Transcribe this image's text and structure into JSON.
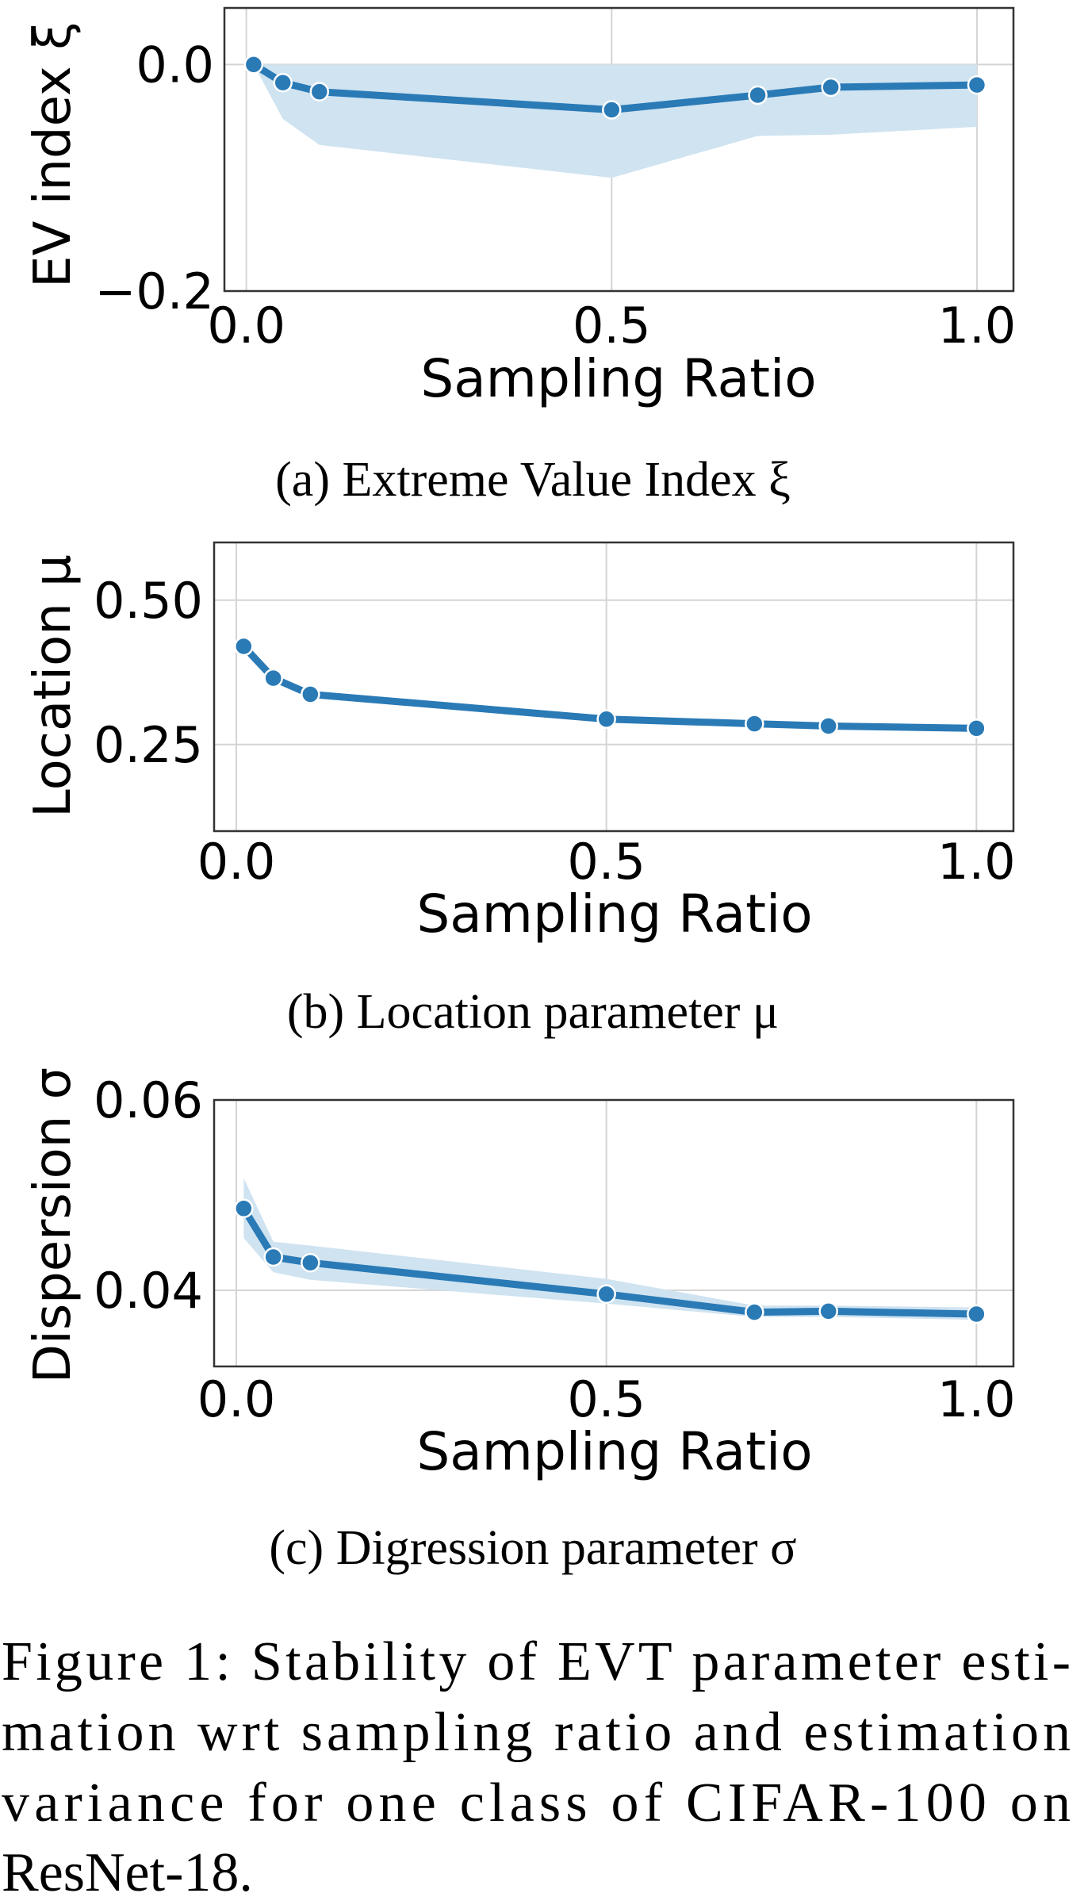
{
  "colors": {
    "line": "#2a7ab6",
    "band": "#cfe3f1",
    "grid": "#d4d4d4"
  },
  "chart_data": [
    {
      "type": "line",
      "x": [
        0.01,
        0.05,
        0.1,
        0.5,
        0.7,
        0.8,
        1.0
      ],
      "values": [
        0.0,
        -0.016,
        -0.024,
        -0.04,
        -0.027,
        -0.02,
        -0.018
      ],
      "band_lower": [
        0.0,
        -0.048,
        -0.071,
        -0.1,
        -0.063,
        -0.062,
        -0.055
      ],
      "band_upper": [
        0.0,
        0.0,
        0.0,
        0.0,
        0.0,
        0.0,
        0.0
      ],
      "xlabel": "Sampling Ratio",
      "ylabel": "EV index ξ",
      "xlim": [
        -0.03,
        1.05
      ],
      "ylim": [
        -0.2,
        0.05
      ],
      "xticks": [
        0.0,
        0.5,
        1.0
      ],
      "xtick_labels": [
        "0.0",
        "0.5",
        "1.0"
      ],
      "yticks": [
        0.0,
        -0.2
      ],
      "ytick_labels": [
        "0.0",
        "−0.2"
      ],
      "grid": true,
      "caption": "(a) Extreme Value Index ξ"
    },
    {
      "type": "line",
      "x": [
        0.01,
        0.05,
        0.1,
        0.5,
        0.7,
        0.8,
        1.0
      ],
      "values": [
        0.42,
        0.365,
        0.337,
        0.294,
        0.286,
        0.282,
        0.278
      ],
      "xlabel": "Sampling Ratio",
      "ylabel": "Location μ",
      "xlim": [
        -0.03,
        1.05
      ],
      "ylim": [
        0.1,
        0.6
      ],
      "xticks": [
        0.0,
        0.5,
        1.0
      ],
      "xtick_labels": [
        "0.0",
        "0.5",
        "1.0"
      ],
      "yticks": [
        0.5,
        0.25
      ],
      "ytick_labels": [
        "0.50",
        "0.25"
      ],
      "grid": true,
      "caption": "(b) Location parameter μ"
    },
    {
      "type": "line",
      "x": [
        0.01,
        0.05,
        0.1,
        0.5,
        0.7,
        0.8,
        1.0
      ],
      "values": [
        0.0486,
        0.0435,
        0.0429,
        0.0396,
        0.0377,
        0.0378,
        0.0375
      ],
      "band_lower": [
        0.0455,
        0.0419,
        0.0411,
        0.0386,
        0.0372,
        0.0372,
        0.0369
      ],
      "band_upper": [
        0.0518,
        0.0451,
        0.0447,
        0.0412,
        0.0384,
        0.0384,
        0.0382
      ],
      "xlabel": "Sampling Ratio",
      "ylabel": "Dispersion σ",
      "xlim": [
        -0.03,
        1.05
      ],
      "ylim": [
        0.032,
        0.06
      ],
      "xticks": [
        0.0,
        0.5,
        1.0
      ],
      "xtick_labels": [
        "0.0",
        "0.5",
        "1.0"
      ],
      "yticks": [
        0.06,
        0.04
      ],
      "ytick_labels": [
        "0.06",
        "0.04"
      ],
      "grid": true,
      "caption": "(c) Digression parameter σ"
    }
  ],
  "figure_caption": {
    "lines": [
      "Figure 1: Stability of EVT parameter esti-",
      "mation wrt sampling ratio and estimation",
      "variance for one class of CIFAR-100 on",
      "ResNet-18."
    ]
  }
}
